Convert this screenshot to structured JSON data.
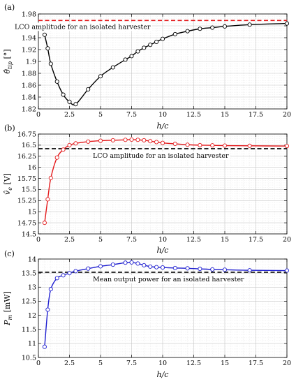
{
  "chart_data": [
    {
      "type": "line",
      "panel_label": "(a)",
      "xlabel": "h/c",
      "ylabel": "θ̂tip [°]",
      "ylabel_main": "θ̂",
      "ylabel_sub": "tip",
      "ylabel_unit": " [°]",
      "xlim": [
        0,
        20
      ],
      "ylim": [
        1.82,
        1.98
      ],
      "xticks": [
        0,
        2.5,
        5,
        7.5,
        10,
        12.5,
        15,
        17.5,
        20
      ],
      "xtick_labels": [
        "0",
        "2.5",
        "5",
        "7.5",
        "10",
        "12.5",
        "15",
        "17.5",
        "20"
      ],
      "yticks": [
        1.82,
        1.84,
        1.86,
        1.88,
        1.9,
        1.92,
        1.94,
        1.96,
        1.98
      ],
      "ytick_labels": [
        "1.82",
        "1.84",
        "1.86",
        "1.88",
        "1.9",
        "1.92",
        "1.94",
        "1.96",
        "1.98"
      ],
      "grid": true,
      "series_color": "#000000",
      "x": [
        0.5,
        0.75,
        1,
        1.5,
        2,
        2.5,
        3,
        4,
        5,
        6,
        7,
        7.5,
        8,
        8.5,
        9,
        9.5,
        10,
        11,
        12,
        13,
        14,
        15,
        17,
        20
      ],
      "y": [
        1.945,
        1.922,
        1.896,
        1.866,
        1.844,
        1.832,
        1.828,
        1.853,
        1.875,
        1.89,
        1.903,
        1.909,
        1.917,
        1.923,
        1.928,
        1.933,
        1.938,
        1.946,
        1.951,
        1.955,
        1.957,
        1.959,
        1.962,
        1.964
      ],
      "reference": {
        "value": 1.969,
        "color": "#e41a1c",
        "label": "LCO amplitude for an isolated harvester"
      }
    },
    {
      "type": "line",
      "panel_label": "(b)",
      "xlabel": "h/c",
      "ylabel": "v̂e [V]",
      "ylabel_main": "v̂",
      "ylabel_sub": "e",
      "ylabel_unit": " [V]",
      "xlim": [
        0,
        20
      ],
      "ylim": [
        14.5,
        16.75
      ],
      "xticks": [
        0,
        2.5,
        5,
        7.5,
        10,
        12.5,
        15,
        17.5,
        20
      ],
      "xtick_labels": [
        "0",
        "2.5",
        "5",
        "7.5",
        "10",
        "12.5",
        "15",
        "17.5",
        "20"
      ],
      "yticks": [
        14.5,
        14.75,
        15,
        15.25,
        15.5,
        15.75,
        16,
        16.25,
        16.5,
        16.75
      ],
      "ytick_labels": [
        "14.5",
        "14.75",
        "15",
        "15.25",
        "15.5",
        "15.75",
        "16",
        "16.25",
        "16.5",
        "16.75"
      ],
      "grid": true,
      "series_color": "#e41a1c",
      "x": [
        0.5,
        0.75,
        1,
        1.5,
        2,
        2.5,
        3,
        4,
        5,
        6,
        7,
        7.5,
        8,
        8.5,
        9,
        9.5,
        10,
        11,
        12,
        13,
        14,
        15,
        17,
        20
      ],
      "y": [
        14.75,
        15.28,
        15.76,
        16.22,
        16.4,
        16.5,
        16.54,
        16.58,
        16.6,
        16.61,
        16.62,
        16.625,
        16.62,
        16.61,
        16.59,
        16.57,
        16.55,
        16.53,
        16.51,
        16.5,
        16.495,
        16.49,
        16.485,
        16.48
      ],
      "reference": {
        "value": 16.42,
        "color": "#000000",
        "label": "LCO amplitude for an isolated harvester"
      }
    },
    {
      "type": "line",
      "panel_label": "(c)",
      "xlabel": "h/c",
      "ylabel": "Pm [mW]",
      "ylabel_main": "P",
      "ylabel_sub": "m",
      "ylabel_unit": " [mW]",
      "xlim": [
        0,
        20
      ],
      "ylim": [
        10.5,
        14
      ],
      "xticks": [
        0,
        2.5,
        5,
        7.5,
        10,
        12.5,
        15,
        17.5,
        20
      ],
      "xtick_labels": [
        "0",
        "2.5",
        "5",
        "7.5",
        "10",
        "12.5",
        "15",
        "17.5",
        "20"
      ],
      "yticks": [
        10.5,
        11,
        11.5,
        12,
        12.5,
        13,
        13.5,
        14
      ],
      "ytick_labels": [
        "10.5",
        "11",
        "11.5",
        "12",
        "12.5",
        "13",
        "13.5",
        "14"
      ],
      "grid": true,
      "series_color": "#1f1fd0",
      "x": [
        0.5,
        0.75,
        1,
        1.5,
        2,
        2.5,
        3,
        4,
        5,
        6,
        7,
        7.5,
        8,
        8.5,
        9,
        9.5,
        10,
        11,
        12,
        13,
        14,
        15,
        17,
        20
      ],
      "y": [
        10.88,
        12.2,
        12.93,
        13.32,
        13.42,
        13.5,
        13.57,
        13.66,
        13.74,
        13.8,
        13.87,
        13.88,
        13.84,
        13.78,
        13.73,
        13.71,
        13.7,
        13.68,
        13.67,
        13.65,
        13.63,
        13.62,
        13.6,
        13.59
      ],
      "reference": {
        "value": 13.53,
        "color": "#000000",
        "label": "Mean output power for an isolated harvester"
      }
    }
  ]
}
